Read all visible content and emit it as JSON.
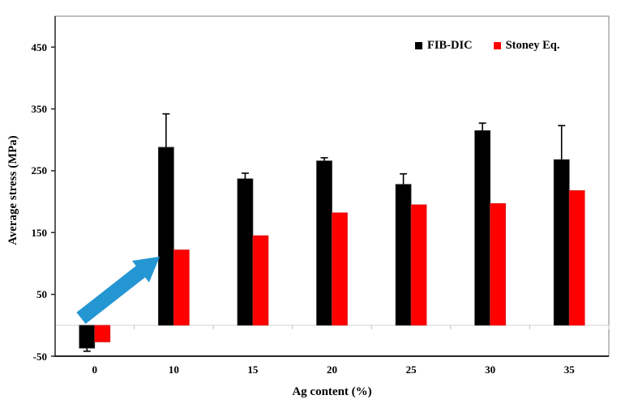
{
  "chart_data": {
    "type": "bar",
    "title": "",
    "xlabel": "Ag content (%)",
    "ylabel": "Average stress (MPa)",
    "categories": [
      "0",
      "10",
      "15",
      "20",
      "25",
      "30",
      "35"
    ],
    "series": [
      {
        "name": "FIB-DIC",
        "color": "#000000",
        "values": [
          -37,
          288,
          237,
          266,
          228,
          315,
          268
        ],
        "errors": [
          5,
          54,
          9,
          5,
          17,
          12,
          55
        ]
      },
      {
        "name": "Stoney Eq.",
        "color": "#ff0000",
        "values": [
          -27,
          122,
          145,
          182,
          195,
          197,
          218
        ],
        "errors": [
          0,
          0,
          0,
          0,
          0,
          0,
          0
        ]
      }
    ],
    "ylim": [
      -50,
      500
    ],
    "yticks": [
      -50,
      50,
      150,
      250,
      350,
      450
    ],
    "gridlines": "zero-line-only",
    "legend_position": "top-right-inside",
    "annotation": {
      "type": "arrow",
      "color": "#2496d2",
      "target": "Stoney Eq. bar at 10% Ag content"
    }
  },
  "colors": {
    "axis": "#262626",
    "frame": "#7f7f7f",
    "zero_line": "#d9d9d9",
    "minor_tick": "#bfbfbf",
    "error_bar": "#000000",
    "background": "#ffffff"
  }
}
